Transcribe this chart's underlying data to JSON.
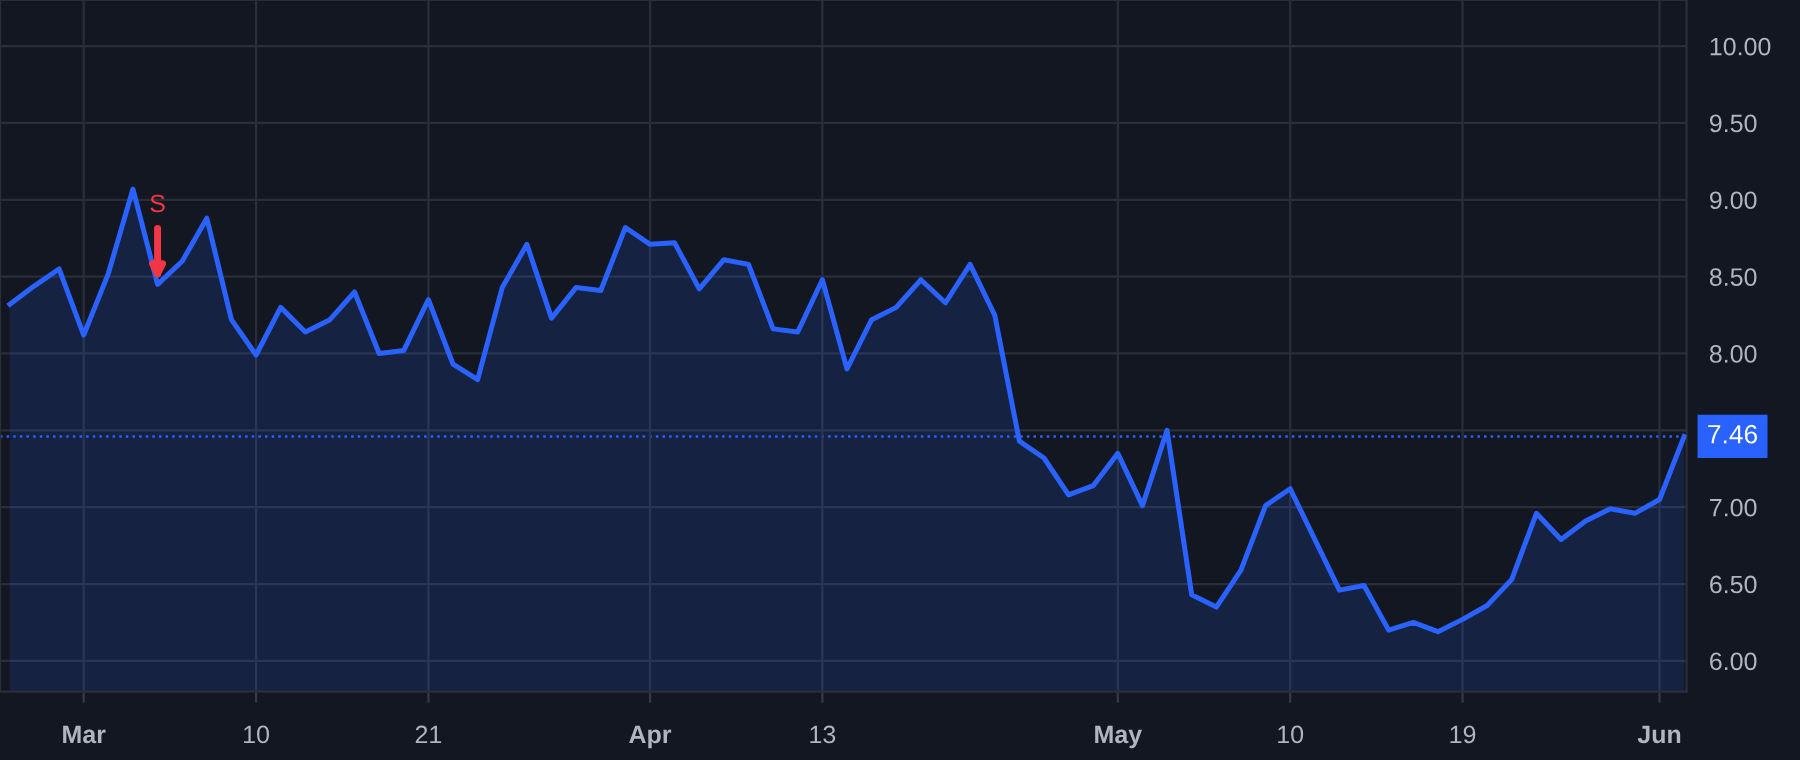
{
  "chart_data": {
    "type": "area",
    "categories": [
      null,
      null,
      null,
      "Mar",
      null,
      null,
      null,
      null,
      null,
      null,
      "10",
      null,
      null,
      null,
      null,
      null,
      null,
      "21",
      null,
      null,
      null,
      null,
      null,
      null,
      null,
      null,
      "Apr",
      null,
      null,
      null,
      null,
      null,
      null,
      "13",
      null,
      null,
      null,
      null,
      null,
      null,
      null,
      null,
      null,
      null,
      null,
      "May",
      null,
      null,
      null,
      null,
      null,
      null,
      "10",
      null,
      null,
      null,
      null,
      null,
      null,
      "19",
      null,
      null,
      null,
      null,
      null,
      null,
      null,
      "Jun",
      null
    ],
    "series": [
      {
        "color": "#2962ff",
        "values": [
          8.32,
          8.44,
          8.55,
          8.12,
          8.52,
          9.07,
          8.45,
          8.6,
          8.88,
          8.22,
          7.99,
          8.3,
          8.14,
          8.22,
          8.4,
          8.0,
          8.02,
          8.35,
          7.93,
          7.83,
          8.43,
          8.71,
          8.23,
          8.43,
          8.41,
          8.82,
          8.71,
          8.72,
          8.42,
          8.61,
          8.58,
          8.16,
          8.14,
          8.48,
          7.9,
          8.22,
          8.3,
          8.48,
          8.33,
          8.58,
          8.25,
          7.43,
          7.32,
          7.08,
          7.14,
          7.35,
          7.01,
          7.5,
          6.43,
          6.35,
          6.59,
          7.01,
          7.12,
          6.79,
          6.46,
          6.49,
          6.2,
          6.25,
          6.19,
          6.27,
          6.36,
          6.53,
          6.96,
          6.79,
          6.91,
          6.99,
          6.96,
          7.05,
          7.46
        ]
      }
    ],
    "ylim": [
      5.8,
      10.3
    ],
    "yticks": [
      {
        "value": 6,
        "label": "6.00"
      },
      {
        "value": 6.5,
        "label": "6.50"
      },
      {
        "value": 7,
        "label": "7.00"
      },
      {
        "value": 7.5,
        "label": null
      },
      {
        "value": 8,
        "label": "8.00"
      },
      {
        "value": 8.5,
        "label": "8.50"
      },
      {
        "value": 9,
        "label": "9.00"
      },
      {
        "value": 9.5,
        "label": "9.50"
      },
      {
        "value": 10,
        "label": "10.00"
      }
    ],
    "ref_lines": [
      {
        "axis": "y",
        "value": 7.46,
        "label": "7.46",
        "color": "#2962ff",
        "line_style": "dotted"
      }
    ],
    "annotations": [
      {
        "text": "S",
        "y": 8.45
      }
    ],
    "grid": true,
    "legend": false
  }
}
